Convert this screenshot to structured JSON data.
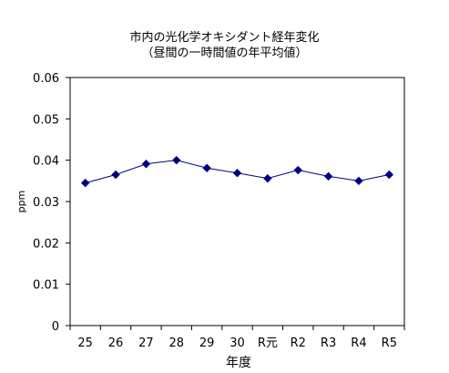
{
  "chart_data": {
    "type": "line",
    "title": "市内の光化学オキシダント経年変化",
    "subtitle": "（昼間の一時間値の年平均値）",
    "xlabel": "年度",
    "ylabel": "ppm",
    "categories": [
      "25",
      "26",
      "27",
      "28",
      "29",
      "30",
      "R元",
      "R2",
      "R3",
      "R4",
      "R5"
    ],
    "series": [
      {
        "values": [
          0.0345,
          0.0365,
          0.0391,
          0.04,
          0.0381,
          0.0369,
          0.0356,
          0.0376,
          0.0361,
          0.035,
          0.0365
        ]
      }
    ],
    "ylim": [
      0,
      0.06
    ],
    "yticks": [
      "0",
      "0.01",
      "0.02",
      "0.03",
      "0.04",
      "0.05",
      "0.06"
    ],
    "grid": false,
    "legend": "none",
    "colors": {
      "series": "#000080",
      "axis": "#000000"
    }
  }
}
